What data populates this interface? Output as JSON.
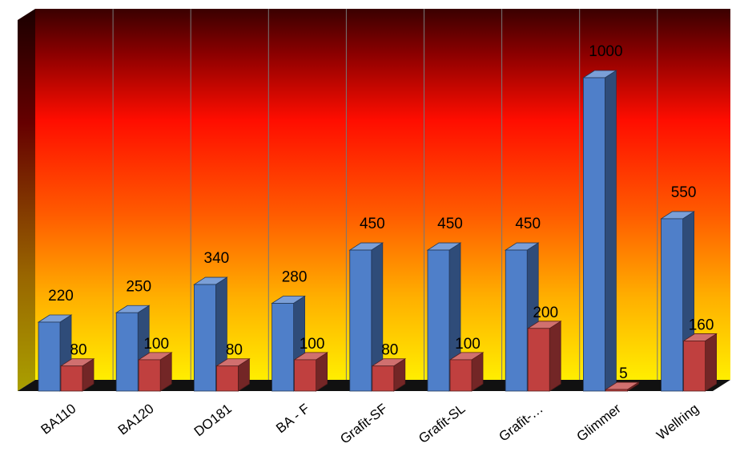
{
  "chart_data": {
    "type": "bar",
    "categories": [
      "BA110",
      "BA120",
      "DO181",
      "BA - F",
      "Grafit-SF",
      "Grafit-SL",
      "Grafit-…",
      "Glimmer",
      "Wellring"
    ],
    "series": [
      {
        "values": [
          220,
          250,
          340,
          280,
          450,
          450,
          450,
          1000,
          550
        ],
        "color": "#4f7fc9"
      },
      {
        "values": [
          80,
          100,
          80,
          100,
          80,
          100,
          200,
          5,
          160
        ],
        "color": "#c0403f"
      }
    ],
    "data_labels": {
      "series_0": [
        "220",
        "250",
        "340",
        "280",
        "450",
        "450",
        "450",
        "1000",
        "550"
      ],
      "series_1": [
        "80",
        "100",
        "80",
        "100",
        "80",
        "100",
        "200",
        "5",
        "160"
      ]
    },
    "ylim": [
      0,
      1150
    ],
    "grid": "vertical",
    "background": "red-to-yellow vertical gradient (3D)",
    "style": "3d-columns"
  }
}
